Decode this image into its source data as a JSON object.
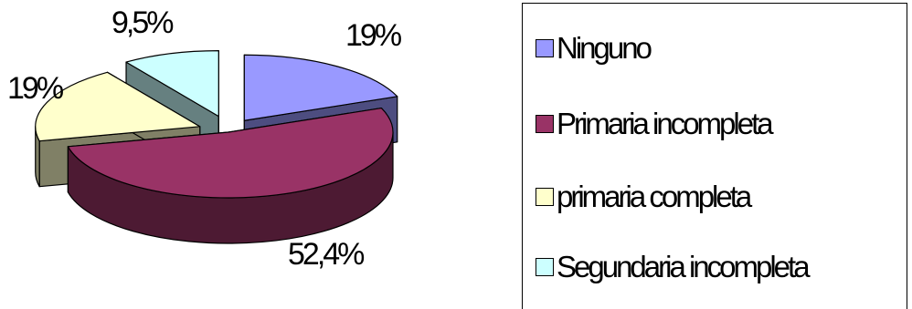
{
  "chart_data": {
    "type": "pie",
    "style": "3d-exploded",
    "title": "",
    "slices": [
      {
        "name": "Ninguno",
        "value": 19,
        "label": "19%",
        "color": "#9999ff",
        "side_color": "#4d4d80"
      },
      {
        "name": "Primaria incompleta",
        "value": 52.4,
        "label": "52,4%",
        "color": "#993366",
        "side_color": "#4d1a33"
      },
      {
        "name": "primaria completa",
        "value": 19,
        "label": "19%",
        "color": "#ffffcc",
        "side_color": "#808066"
      },
      {
        "name": "Segundaria incompleta",
        "value": 9.5,
        "label": "9,5%",
        "color": "#ccffff",
        "side_color": "#668080"
      }
    ],
    "legend_position": "right"
  }
}
